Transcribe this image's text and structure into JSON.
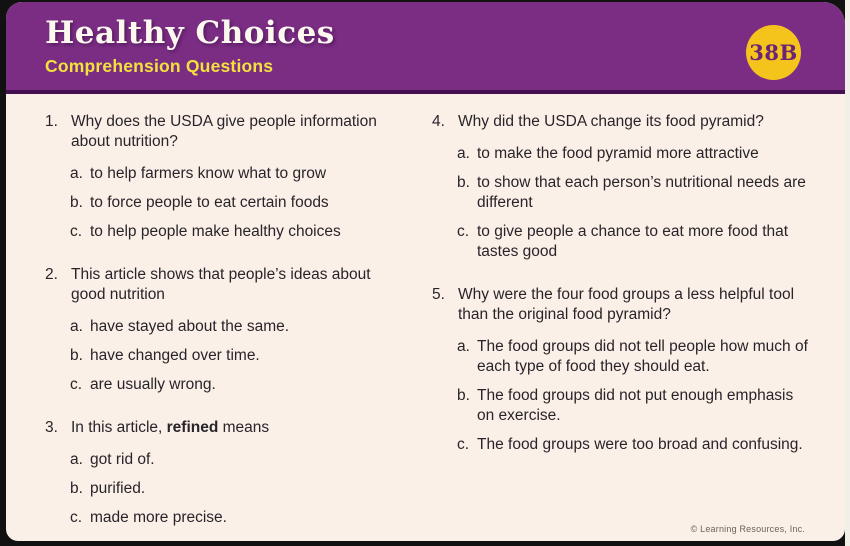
{
  "header": {
    "title": "Healthy Choices",
    "subtitle": "Comprehension Questions",
    "badge": "38B"
  },
  "columns": [
    {
      "questions": [
        {
          "number": "1.",
          "text": "Why does the USDA give people information about nutrition?",
          "options": [
            {
              "letter": "a.",
              "text": "to help farmers know what to grow"
            },
            {
              "letter": "b.",
              "text": "to force people to eat certain foods"
            },
            {
              "letter": "c.",
              "text": "to help people make healthy choices"
            }
          ]
        },
        {
          "number": "2.",
          "text": "This article shows that people’s ideas about good nutrition",
          "options": [
            {
              "letter": "a.",
              "text": "have stayed about the same."
            },
            {
              "letter": "b.",
              "text": "have changed over time."
            },
            {
              "letter": "c.",
              "text": "are usually wrong."
            }
          ]
        },
        {
          "number": "3.",
          "text": "In this article, **refined** means",
          "options": [
            {
              "letter": "a.",
              "text": "got rid of."
            },
            {
              "letter": "b.",
              "text": "purified."
            },
            {
              "letter": "c.",
              "text": "made more precise."
            }
          ]
        }
      ]
    },
    {
      "questions": [
        {
          "number": "4.",
          "text": "Why did the USDA change its food pyramid?",
          "options": [
            {
              "letter": "a.",
              "text": "to make the food pyramid more attractive"
            },
            {
              "letter": "b.",
              "text": "to show that each person’s nutritional needs are different"
            },
            {
              "letter": "c.",
              "text": "to give people a chance to eat more food that tastes good"
            }
          ]
        },
        {
          "number": "5.",
          "text": "Why were the four food groups a less helpful tool than the original food pyramid?",
          "options": [
            {
              "letter": "a.",
              "text": "The food groups did not tell people how much of each type of food they should eat."
            },
            {
              "letter": "b.",
              "text": "The food groups did not put enough emphasis on exercise."
            },
            {
              "letter": "c.",
              "text": "The food groups were too broad and confusing."
            }
          ]
        }
      ]
    }
  ],
  "footer": {
    "copyright": "© Learning Resources, Inc."
  },
  "colors": {
    "header_purple": "#7b2d84",
    "header_edge_dark_purple": "#451052",
    "title_white": "#fdf8ef",
    "subtitle_yellow": "#f2e23c",
    "badge_yellow": "#f5c41c",
    "badge_text_purple": "#6b2376",
    "body_cream": "#faf0e7",
    "body_text": "#29242a"
  }
}
